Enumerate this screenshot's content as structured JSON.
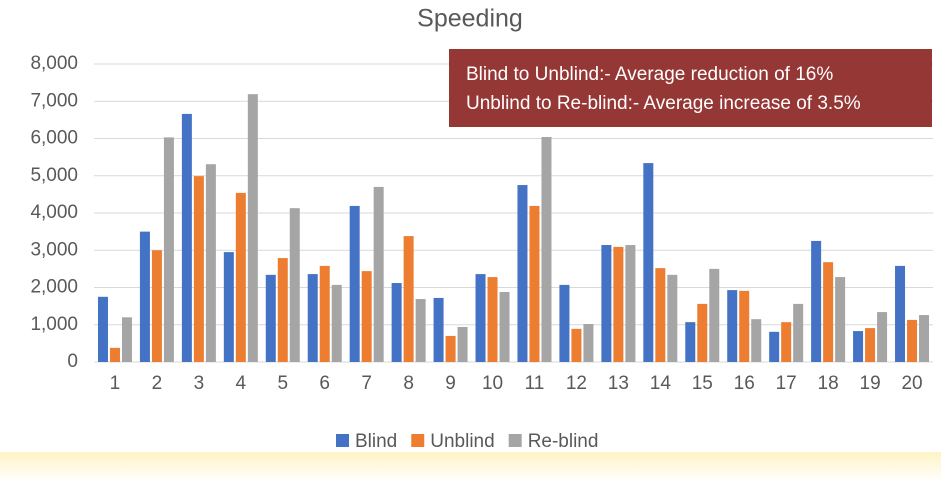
{
  "chart_data": {
    "type": "bar",
    "title": "Speeding",
    "categories": [
      "1",
      "2",
      "3",
      "4",
      "5",
      "6",
      "7",
      "8",
      "9",
      "10",
      "11",
      "12",
      "13",
      "14",
      "15",
      "16",
      "17",
      "18",
      "19",
      "20"
    ],
    "series": [
      {
        "name": "Blind",
        "color": "#4472c4",
        "values": [
          1750,
          3500,
          6660,
          2950,
          2340,
          2360,
          4190,
          2120,
          1720,
          2360,
          4750,
          2070,
          3140,
          5340,
          1070,
          1930,
          810,
          3250,
          830,
          2580
        ]
      },
      {
        "name": "Unblind",
        "color": "#ed7d31",
        "values": [
          380,
          3000,
          4990,
          4540,
          2790,
          2580,
          2440,
          3380,
          700,
          2280,
          4190,
          890,
          3090,
          2520,
          1560,
          1910,
          1070,
          2680,
          910,
          1130
        ]
      },
      {
        "name": "Re-blind",
        "color": "#a5a5a5",
        "values": [
          1200,
          6030,
          5310,
          7190,
          4130,
          2070,
          4700,
          1690,
          940,
          1880,
          6040,
          1020,
          3140,
          2340,
          2500,
          1150,
          1560,
          2280,
          1340,
          1260
        ]
      }
    ],
    "ylim": [
      0,
      8000
    ],
    "yticks": [
      0,
      {
        "value": 1000,
        "label": "1,000"
      },
      {
        "value": 2000,
        "label": "2,000"
      },
      {
        "value": 3000,
        "label": "3,000"
      },
      {
        "value": 4000,
        "label": "4,000"
      },
      {
        "value": 5000,
        "label": "5,000"
      },
      {
        "value": 6000,
        "label": "6,000"
      },
      {
        "value": 7000,
        "label": "7,000"
      },
      {
        "value": 8000,
        "label": "8,000"
      }
    ],
    "grid": true,
    "legend": "bottom",
    "annotation": [
      "Blind to Unblind:- Average reduction of 16%",
      "Unblind to Re-blind:- Average increase of 3.5%"
    ]
  }
}
